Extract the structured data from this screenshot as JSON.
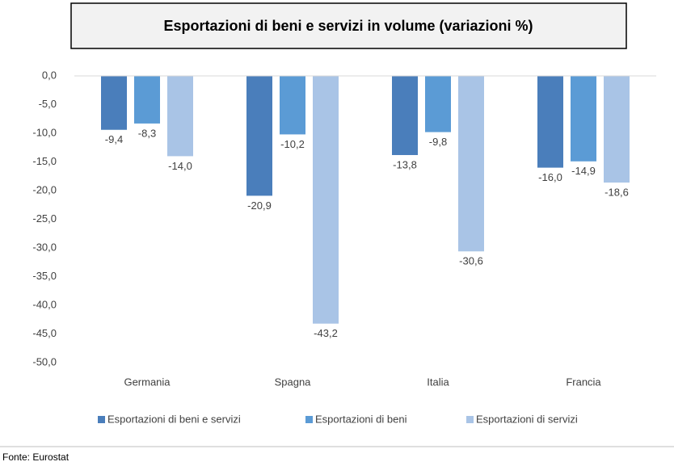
{
  "chart_data": {
    "type": "bar",
    "title": "Esportazioni di beni e servizi in volume (variazioni %)",
    "categories": [
      "Germania",
      "Spagna",
      "Italia",
      "Francia"
    ],
    "series": [
      {
        "name": "Esportazioni di beni e servizi",
        "color": "#4a7ebb",
        "values": [
          -9.4,
          -20.9,
          -13.8,
          -16.0
        ],
        "value_labels": [
          "-9,4",
          "-20,9",
          "-13,8",
          "-16,0"
        ]
      },
      {
        "name": "Esportazioni di beni",
        "color": "#5b9bd5",
        "values": [
          -8.3,
          -10.2,
          -9.8,
          -14.9
        ],
        "value_labels": [
          "-8,3",
          "-10,2",
          "-9,8",
          "-14,9"
        ]
      },
      {
        "name": "Esportazioni di servizi",
        "color": "#a9c4e6",
        "values": [
          -14.0,
          -43.2,
          -30.6,
          -18.6
        ],
        "value_labels": [
          "-14,0",
          "-43,2",
          "-30,6",
          "-18,6"
        ]
      }
    ],
    "ylim": [
      -50,
      0
    ],
    "yticks": [
      {
        "value": 0,
        "label": "0,0"
      },
      {
        "value": -5,
        "label": "-5,0"
      },
      {
        "value": -10,
        "label": "-10,0"
      },
      {
        "value": -15,
        "label": "-15,0"
      },
      {
        "value": -20,
        "label": "-20,0"
      },
      {
        "value": -25,
        "label": "-25,0"
      },
      {
        "value": -30,
        "label": "-30,0"
      },
      {
        "value": -35,
        "label": "-35,0"
      },
      {
        "value": -40,
        "label": "-40,0"
      },
      {
        "value": -45,
        "label": "-45,0"
      },
      {
        "value": -50,
        "label": "-50,0"
      }
    ],
    "grid": false,
    "legend": "bottom",
    "source": "Fonte: Eurostat"
  }
}
